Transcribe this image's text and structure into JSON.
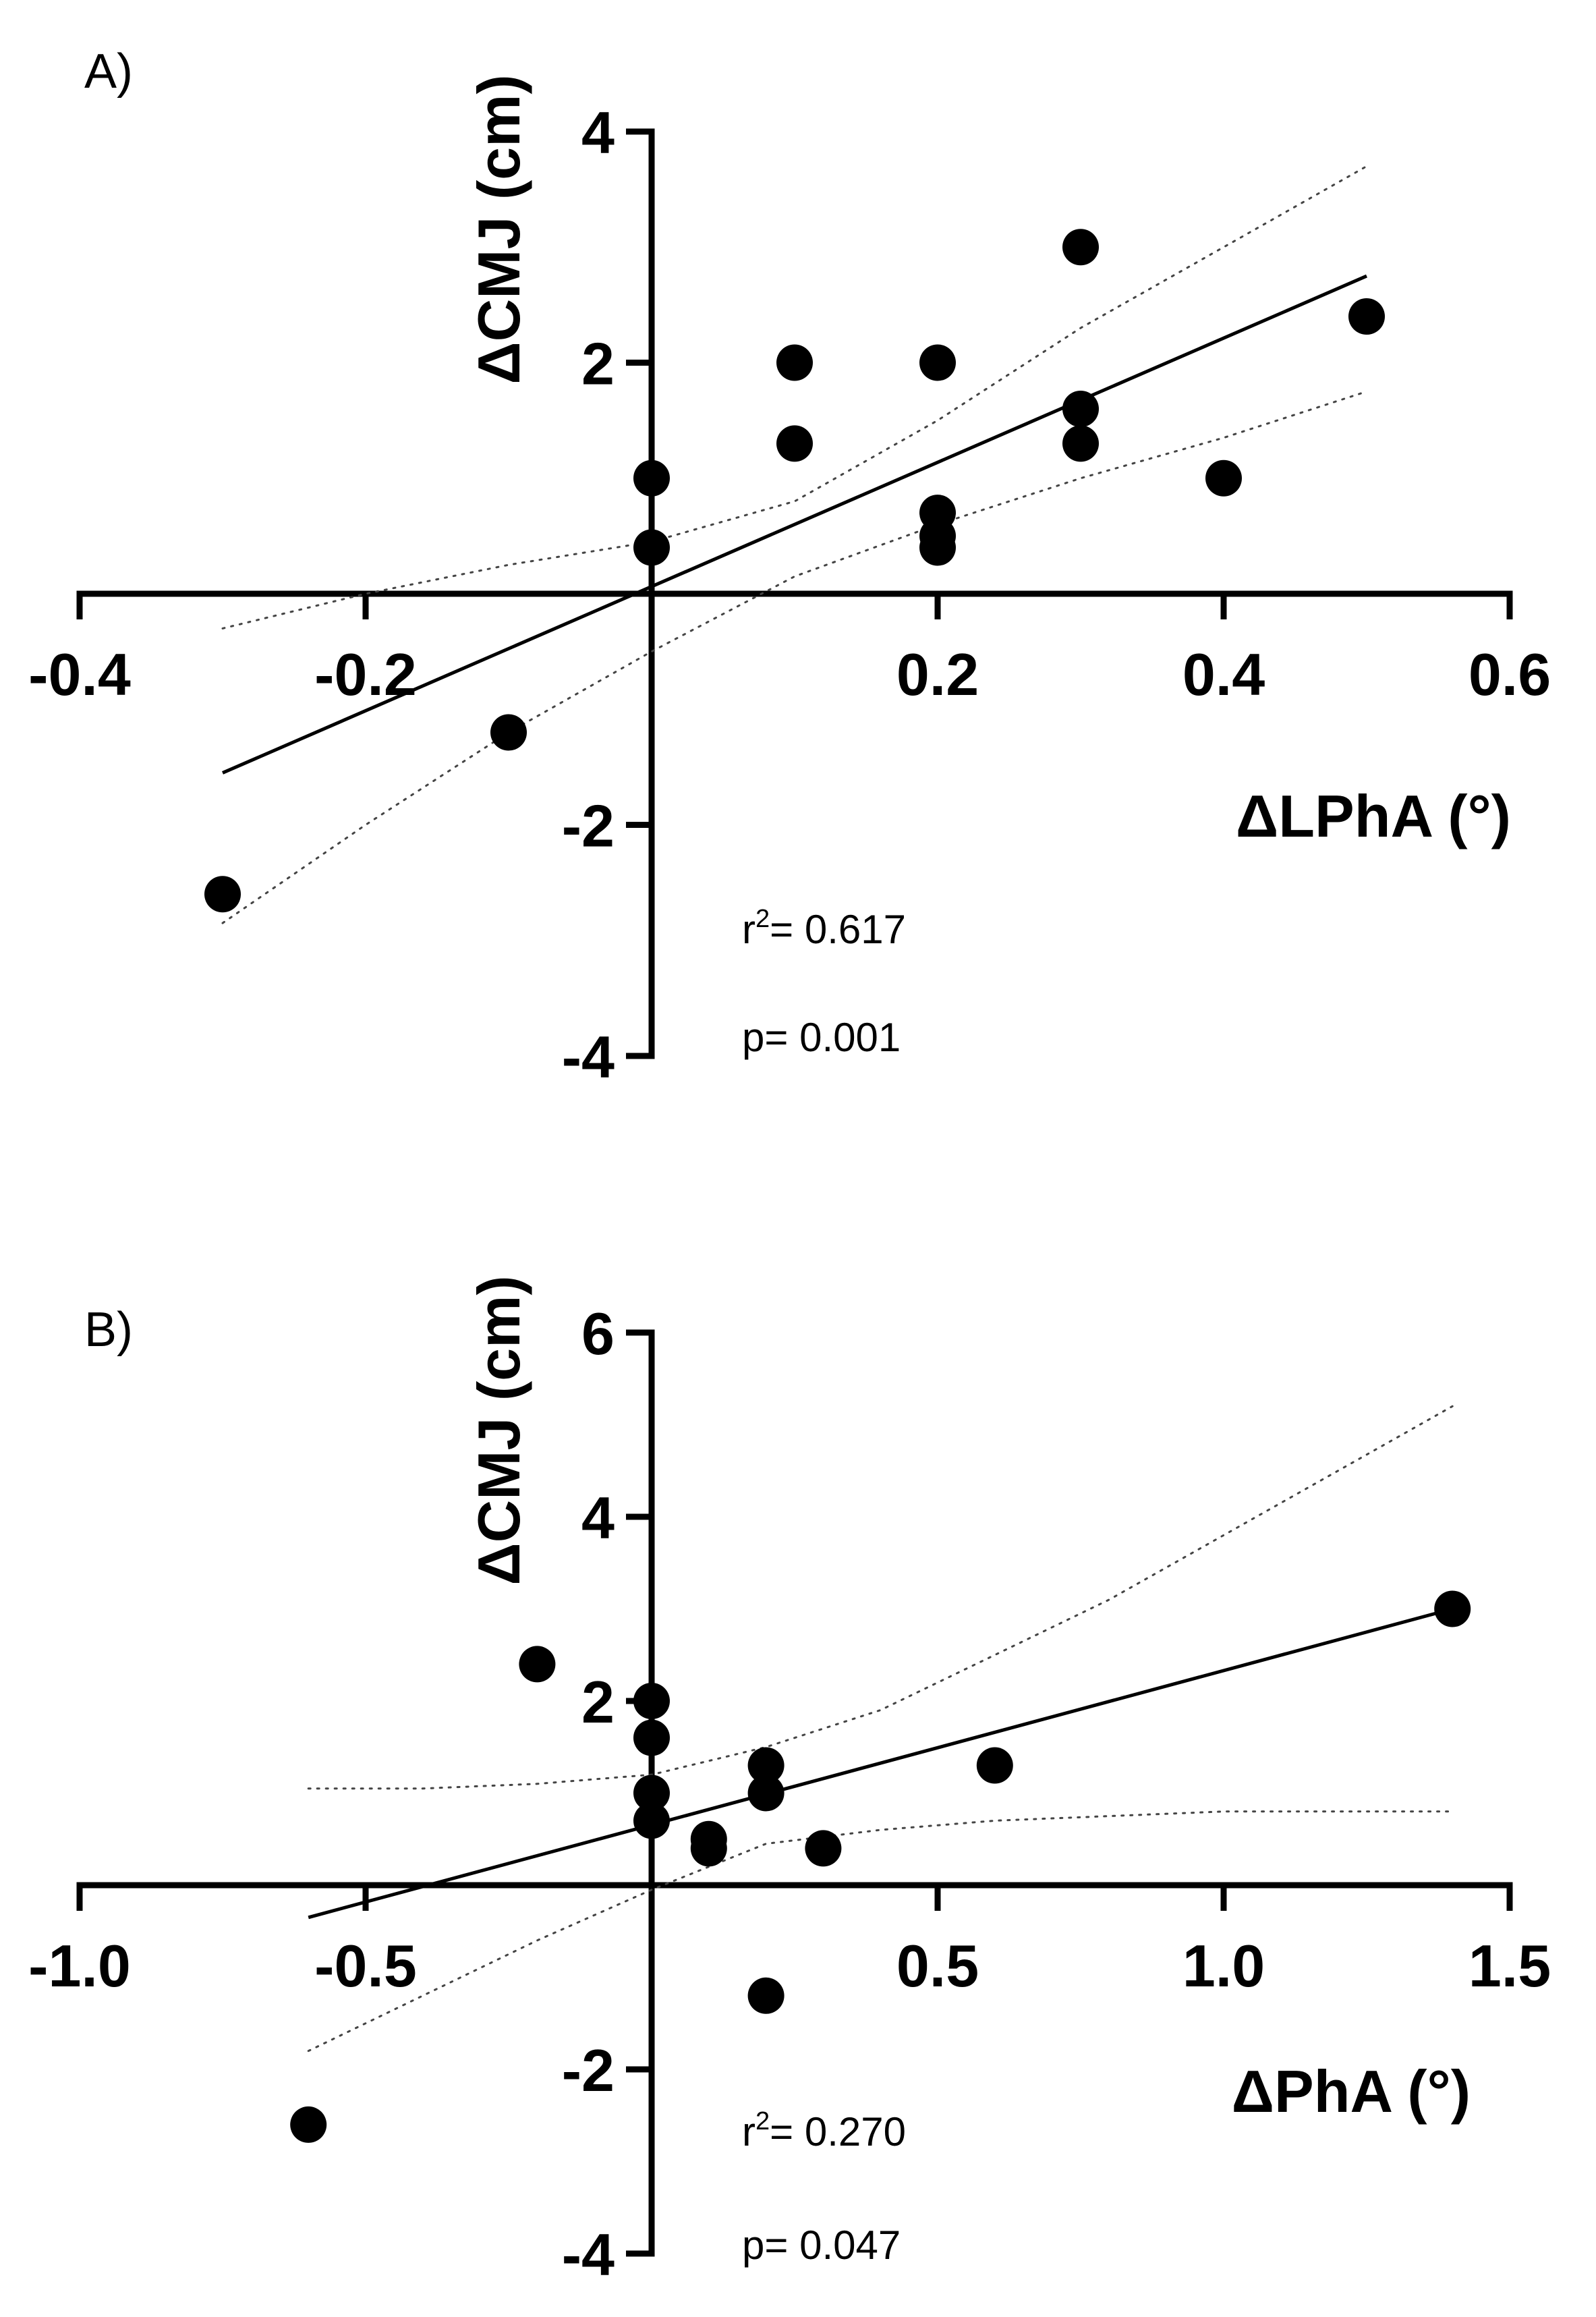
{
  "chart_data": [
    {
      "type": "scatter",
      "panel_label": "A)",
      "xlabel": "ΔLPhA (°)",
      "ylabel": "ΔCMJ (cm)",
      "xlim": [
        -0.4,
        0.6
      ],
      "ylim": [
        -4,
        4
      ],
      "xticks": [
        -0.4,
        -0.2,
        0.2,
        0.4,
        0.6
      ],
      "xtick_labels": [
        "-0.4",
        "-0.2",
        "0.2",
        "0.4",
        "0.6"
      ],
      "yticks": [
        -4,
        -2,
        2,
        4
      ],
      "ytick_labels": [
        "-4",
        "-2",
        "2",
        "4"
      ],
      "points": [
        {
          "x": -0.3,
          "y": -2.6
        },
        {
          "x": -0.1,
          "y": -1.2
        },
        {
          "x": 0.0,
          "y": 1.0
        },
        {
          "x": 0.0,
          "y": 0.4
        },
        {
          "x": 0.1,
          "y": 2.0
        },
        {
          "x": 0.1,
          "y": 1.3
        },
        {
          "x": 0.2,
          "y": 2.0
        },
        {
          "x": 0.2,
          "y": 0.7
        },
        {
          "x": 0.2,
          "y": 0.5
        },
        {
          "x": 0.2,
          "y": 0.4
        },
        {
          "x": 0.3,
          "y": 3.0
        },
        {
          "x": 0.3,
          "y": 1.6
        },
        {
          "x": 0.3,
          "y": 1.3
        },
        {
          "x": 0.4,
          "y": 1.0
        },
        {
          "x": 0.5,
          "y": 2.4
        }
      ],
      "fit_line": {
        "x": [
          -0.3,
          0.5
        ],
        "y": [
          -1.55,
          2.75
        ]
      },
      "ci_upper": {
        "x": [
          -0.3,
          -0.2,
          -0.1,
          0.0,
          0.1,
          0.2,
          0.3,
          0.4,
          0.5
        ],
        "y": [
          -0.3,
          0.0,
          0.25,
          0.45,
          0.8,
          1.5,
          2.3,
          3.0,
          3.7
        ]
      },
      "ci_lower": {
        "x": [
          -0.3,
          -0.2,
          -0.1,
          0.0,
          0.1,
          0.2,
          0.3,
          0.4,
          0.5
        ],
        "y": [
          -2.85,
          -2.0,
          -1.2,
          -0.5,
          0.15,
          0.6,
          1.0,
          1.35,
          1.75
        ]
      },
      "annotations": {
        "r2_prefix": "r",
        "r2_sup": "2",
        "r2_value": "= 0.617",
        "p_text": "p= 0.001"
      }
    },
    {
      "type": "scatter",
      "panel_label": "B)",
      "xlabel": "ΔPhA (°)",
      "ylabel": "ΔCMJ (cm)",
      "xlim": [
        -1.0,
        1.5
      ],
      "ylim": [
        -4,
        6
      ],
      "xticks": [
        -1.0,
        -0.5,
        0.5,
        1.0,
        1.5
      ],
      "xtick_labels": [
        "-1.0",
        "-0.5",
        "0.5",
        "1.0",
        "1.5"
      ],
      "yticks": [
        -4,
        -2,
        2,
        4,
        6
      ],
      "ytick_labels": [
        "-4",
        "-2",
        "2",
        "4",
        "6"
      ],
      "points": [
        {
          "x": -0.6,
          "y": -2.6
        },
        {
          "x": -0.2,
          "y": 2.4
        },
        {
          "x": 0.0,
          "y": 2.0
        },
        {
          "x": 0.0,
          "y": 1.6
        },
        {
          "x": 0.0,
          "y": 1.0
        },
        {
          "x": 0.0,
          "y": 0.7
        },
        {
          "x": 0.1,
          "y": 0.5
        },
        {
          "x": 0.1,
          "y": 0.4
        },
        {
          "x": 0.2,
          "y": 1.3
        },
        {
          "x": 0.2,
          "y": 1.0
        },
        {
          "x": 0.2,
          "y": -1.2
        },
        {
          "x": 0.3,
          "y": 0.4
        },
        {
          "x": 0.6,
          "y": 1.3
        },
        {
          "x": 1.4,
          "y": 3.0
        }
      ],
      "fit_line": {
        "x": [
          -0.6,
          1.4
        ],
        "y": [
          -0.35,
          3.0
        ]
      },
      "ci_upper": {
        "x": [
          -0.6,
          -0.4,
          -0.2,
          0.0,
          0.2,
          0.4,
          0.6,
          0.8,
          1.0,
          1.2,
          1.4
        ],
        "y": [
          1.05,
          1.05,
          1.1,
          1.2,
          1.5,
          1.9,
          2.5,
          3.1,
          3.8,
          4.5,
          5.2
        ]
      },
      "ci_lower": {
        "x": [
          -0.6,
          -0.4,
          -0.2,
          0.0,
          0.2,
          0.4,
          0.6,
          0.8,
          1.0,
          1.2,
          1.4
        ],
        "y": [
          -1.8,
          -1.2,
          -0.6,
          -0.05,
          0.45,
          0.6,
          0.7,
          0.75,
          0.8,
          0.8,
          0.8
        ]
      },
      "annotations": {
        "r2_prefix": "r",
        "r2_sup": "2",
        "r2_value": "= 0.270",
        "p_text": "p= 0.047"
      }
    }
  ]
}
